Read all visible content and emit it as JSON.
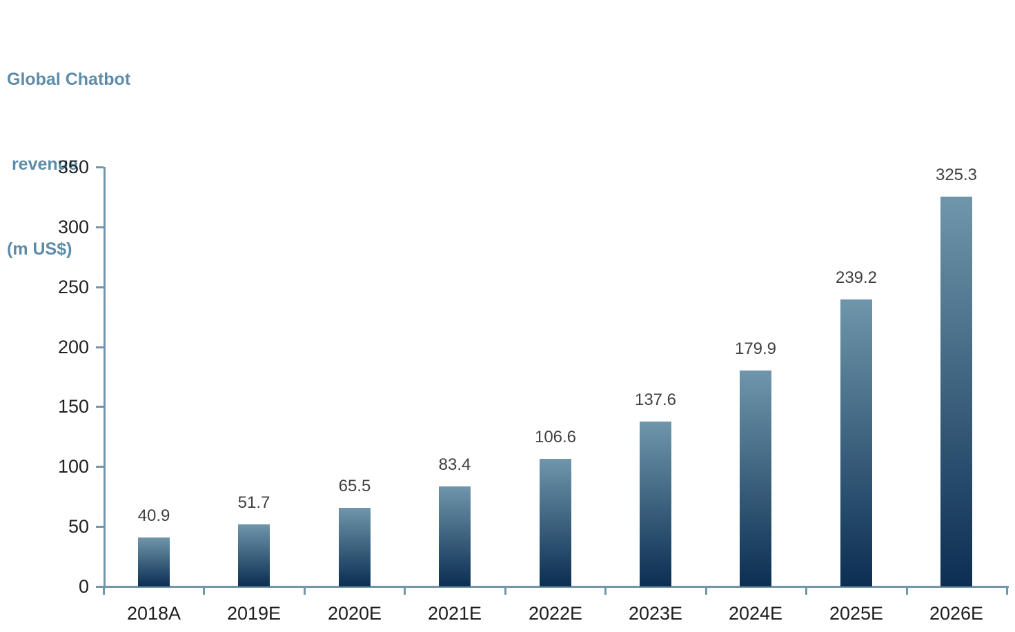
{
  "title": {
    "lines": [
      "Global Chatbot",
      " revenue",
      "(m US$)"
    ]
  },
  "chart_data": {
    "type": "bar",
    "title": "Global Chatbot revenue (m US$)",
    "categories": [
      "2018A",
      "2019E",
      "2020E",
      "2021E",
      "2022E",
      "2023E",
      "2024E",
      "2025E",
      "2026E"
    ],
    "values": [
      40.9,
      51.7,
      65.5,
      83.4,
      106.6,
      137.6,
      179.9,
      239.2,
      325.3
    ],
    "value_decimals": 1,
    "xlabel": "",
    "ylabel": "Global Chatbot revenue (m US$)",
    "ylim": [
      0,
      350
    ],
    "ytick_interval": 50,
    "grid": false,
    "legend": "none",
    "data_labels": true,
    "colors": {
      "title": "#5e8ca8",
      "axis": "#7396ab",
      "bar_gradient_top": "#6f96ab",
      "bar_gradient_bottom": "#0b2e52",
      "data_label": "#404040",
      "tick_label": "#1f1f1f"
    }
  }
}
